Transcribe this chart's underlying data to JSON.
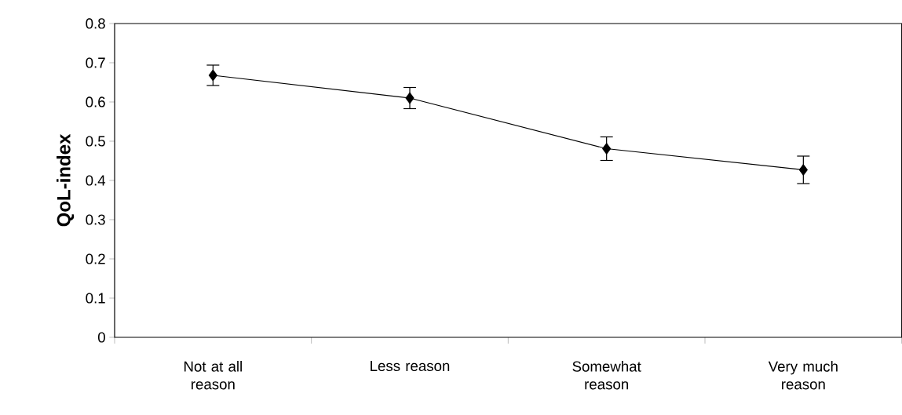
{
  "chart_data": {
    "type": "line",
    "ylabel": "QoL-index",
    "categories": [
      "Not at all reason",
      "Less reason",
      "Somewhat reason",
      "Very much reason"
    ],
    "values": [
      0.668,
      0.61,
      0.481,
      0.427
    ],
    "errors": [
      0.026,
      0.027,
      0.03,
      0.035
    ],
    "color": "#000000",
    "marker": "diamond",
    "line_style": "solid",
    "ylim": [
      0,
      0.8
    ],
    "yticks": [
      0,
      0.1,
      0.2,
      0.3,
      0.4,
      0.5,
      0.6,
      0.7,
      0.8
    ]
  }
}
